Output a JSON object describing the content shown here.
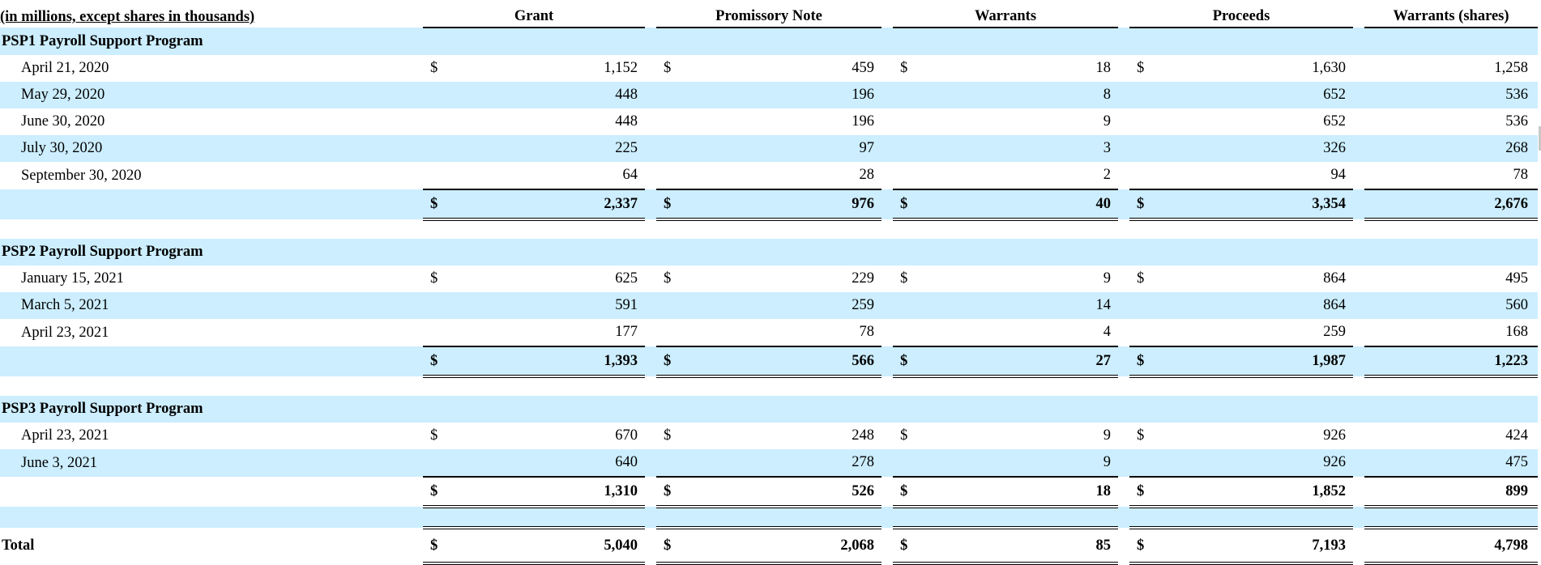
{
  "header": {
    "title": "(in millions, except shares in thousands)",
    "columns": [
      "Grant",
      "Promissory Note",
      "Warrants",
      "Proceeds",
      "Warrants (shares)"
    ]
  },
  "currency_symbol": "$",
  "sections": [
    {
      "title": "PSP1 Payroll Support Program",
      "rows": [
        {
          "date": "April 21, 2020",
          "grant": "1,152",
          "note": "459",
          "warrants": "18",
          "proceeds": "1,630",
          "shares": "1,258"
        },
        {
          "date": "May 29, 2020",
          "grant": "448",
          "note": "196",
          "warrants": "8",
          "proceeds": "652",
          "shares": "536"
        },
        {
          "date": "June 30, 2020",
          "grant": "448",
          "note": "196",
          "warrants": "9",
          "proceeds": "652",
          "shares": "536"
        },
        {
          "date": "July 30, 2020",
          "grant": "225",
          "note": "97",
          "warrants": "3",
          "proceeds": "326",
          "shares": "268"
        },
        {
          "date": "September 30, 2020",
          "grant": "64",
          "note": "28",
          "warrants": "2",
          "proceeds": "94",
          "shares": "78"
        }
      ],
      "subtotal": {
        "grant": "2,337",
        "note": "976",
        "warrants": "40",
        "proceeds": "3,354",
        "shares": "2,676"
      }
    },
    {
      "title": "PSP2 Payroll Support Program",
      "rows": [
        {
          "date": "January 15, 2021",
          "grant": "625",
          "note": "229",
          "warrants": "9",
          "proceeds": "864",
          "shares": "495"
        },
        {
          "date": "March 5, 2021",
          "grant": "591",
          "note": "259",
          "warrants": "14",
          "proceeds": "864",
          "shares": "560"
        },
        {
          "date": "April 23, 2021",
          "grant": "177",
          "note": "78",
          "warrants": "4",
          "proceeds": "259",
          "shares": "168"
        }
      ],
      "subtotal": {
        "grant": "1,393",
        "note": "566",
        "warrants": "27",
        "proceeds": "1,987",
        "shares": "1,223"
      }
    },
    {
      "title": "PSP3 Payroll Support Program",
      "rows": [
        {
          "date": "April 23, 2021",
          "grant": "670",
          "note": "248",
          "warrants": "9",
          "proceeds": "926",
          "shares": "424"
        },
        {
          "date": "June 3, 2021",
          "grant": "640",
          "note": "278",
          "warrants": "9",
          "proceeds": "926",
          "shares": "475"
        }
      ],
      "subtotal": {
        "grant": "1,310",
        "note": "526",
        "warrants": "18",
        "proceeds": "1,852",
        "shares": "899"
      }
    }
  ],
  "total": {
    "label": "Total",
    "grant": "5,040",
    "note": "2,068",
    "warrants": "85",
    "proceeds": "7,193",
    "shares": "4,798"
  },
  "colors": {
    "band": "#cceeff",
    "text": "#000000"
  }
}
